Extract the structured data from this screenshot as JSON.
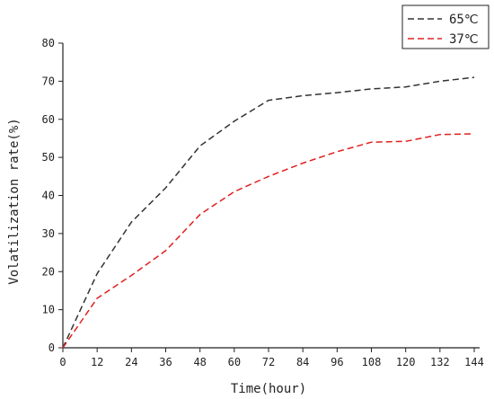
{
  "chart_data": {
    "type": "line",
    "title": "",
    "xlabel": "Time(hour)",
    "ylabel": "Volatilization rate(%)",
    "xlim": [
      0,
      144
    ],
    "ylim": [
      0,
      80
    ],
    "xticks": [
      0,
      12,
      24,
      36,
      48,
      60,
      72,
      84,
      96,
      108,
      120,
      132,
      144
    ],
    "yticks": [
      0,
      10,
      20,
      30,
      40,
      50,
      60,
      70,
      80
    ],
    "grid": false,
    "legend_position": "top-right",
    "series": [
      {
        "name": "65℃",
        "color": "#333333",
        "line_style": "dashed",
        "x": [
          0,
          12,
          24,
          36,
          48,
          60,
          72,
          84,
          96,
          108,
          120,
          132,
          144
        ],
        "y": [
          0,
          19.5,
          33,
          42,
          53,
          59.5,
          65,
          66.2,
          67,
          68,
          68.5,
          70,
          71
        ]
      },
      {
        "name": "37℃",
        "color": "#e02020",
        "line_style": "dashed",
        "x": [
          0,
          12,
          24,
          36,
          48,
          60,
          72,
          84,
          96,
          108,
          120,
          132,
          144
        ],
        "y": [
          0,
          13,
          19,
          25.5,
          35,
          41,
          45,
          48.5,
          51.5,
          54,
          54.2,
          56,
          56.2
        ]
      }
    ]
  }
}
